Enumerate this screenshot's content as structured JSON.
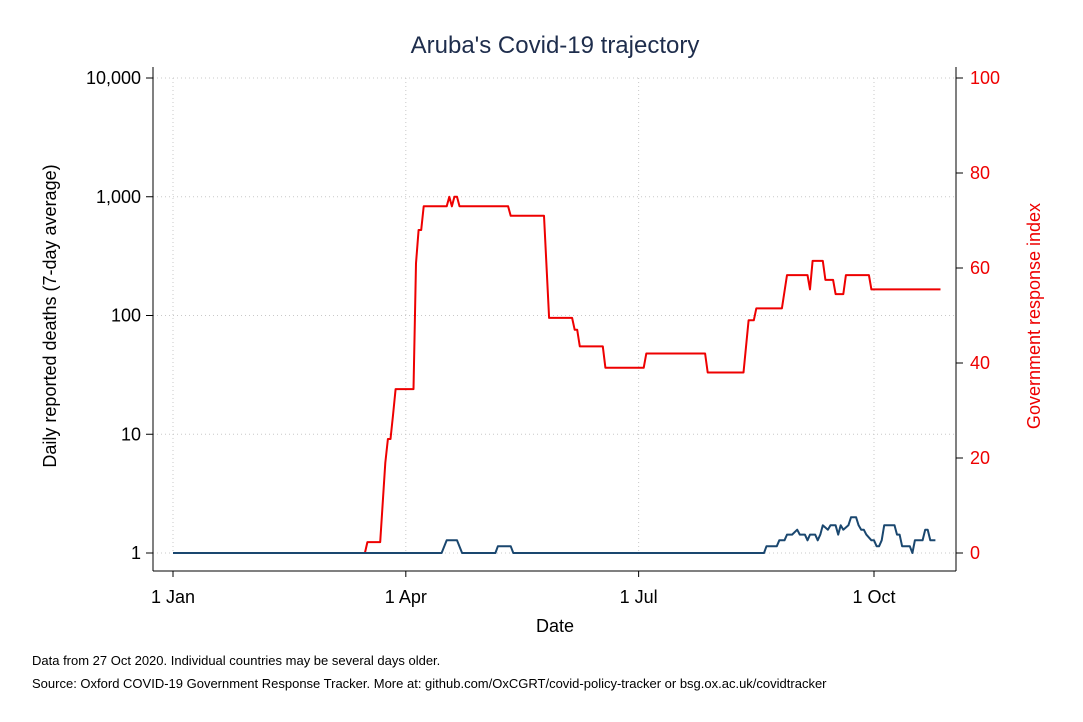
{
  "chart_data": {
    "type": "line",
    "title": "Aruba's Covid-19 trajectory",
    "xlabel": "Date",
    "ylabel_left": "Daily reported deaths (7-day average)",
    "ylabel_right": "Government response index",
    "x_ticks": [
      "1 Jan",
      "1 Apr",
      "1 Jul",
      "1 Oct"
    ],
    "y_left_scale": "log",
    "y_left_ticks": [
      "1",
      "10",
      "100",
      "1,000",
      "10,000"
    ],
    "y_left_lim": [
      1,
      10000
    ],
    "y_right_ticks": [
      "0",
      "20",
      "40",
      "60",
      "80",
      "100"
    ],
    "y_right_lim": [
      0,
      100
    ],
    "grid": true,
    "series": [
      {
        "axis": "right",
        "color": "#ee0000",
        "points": [
          [
            "2020-01-01",
            0
          ],
          [
            "2020-03-16",
            0
          ],
          [
            "2020-03-17",
            2.3
          ],
          [
            "2020-03-22",
            2.3
          ],
          [
            "2020-03-24",
            19
          ],
          [
            "2020-03-25",
            24
          ],
          [
            "2020-03-26",
            24
          ],
          [
            "2020-03-27",
            29
          ],
          [
            "2020-03-28",
            34.5
          ],
          [
            "2020-04-04",
            34.5
          ],
          [
            "2020-04-05",
            61
          ],
          [
            "2020-04-06",
            68
          ],
          [
            "2020-04-07",
            68
          ],
          [
            "2020-04-08",
            73
          ],
          [
            "2020-04-17",
            73
          ],
          [
            "2020-04-18",
            75
          ],
          [
            "2020-04-19",
            73
          ],
          [
            "2020-04-20",
            75
          ],
          [
            "2020-04-21",
            75
          ],
          [
            "2020-04-22",
            73
          ],
          [
            "2020-05-11",
            73
          ],
          [
            "2020-05-12",
            71
          ],
          [
            "2020-05-25",
            71
          ],
          [
            "2020-05-27",
            49.5
          ],
          [
            "2020-06-05",
            49.5
          ],
          [
            "2020-06-06",
            47
          ],
          [
            "2020-06-07",
            47
          ],
          [
            "2020-06-08",
            43.5
          ],
          [
            "2020-06-17",
            43.5
          ],
          [
            "2020-06-18",
            39
          ],
          [
            "2020-07-03",
            39
          ],
          [
            "2020-07-04",
            42
          ],
          [
            "2020-07-27",
            42
          ],
          [
            "2020-07-28",
            38
          ],
          [
            "2020-08-11",
            38
          ],
          [
            "2020-08-13",
            49
          ],
          [
            "2020-08-15",
            49
          ],
          [
            "2020-08-16",
            51.5
          ],
          [
            "2020-08-26",
            51.5
          ],
          [
            "2020-08-28",
            58.5
          ],
          [
            "2020-09-05",
            58.5
          ],
          [
            "2020-09-06",
            55.5
          ],
          [
            "2020-09-07",
            61.5
          ],
          [
            "2020-09-11",
            61.5
          ],
          [
            "2020-09-12",
            57.5
          ],
          [
            "2020-09-15",
            57.5
          ],
          [
            "2020-09-16",
            54.5
          ],
          [
            "2020-09-19",
            54.5
          ],
          [
            "2020-09-20",
            58.5
          ],
          [
            "2020-09-29",
            58.5
          ],
          [
            "2020-09-30",
            55.5
          ],
          [
            "2020-10-27",
            55.5
          ]
        ]
      },
      {
        "axis": "left",
        "color": "#1a476f",
        "points": [
          [
            "2020-01-01",
            1
          ],
          [
            "2020-04-15",
            1
          ],
          [
            "2020-04-17",
            1.28
          ],
          [
            "2020-04-21",
            1.28
          ],
          [
            "2020-04-23",
            1
          ],
          [
            "2020-05-06",
            1
          ],
          [
            "2020-05-07",
            1.14
          ],
          [
            "2020-05-12",
            1.14
          ],
          [
            "2020-05-13",
            1
          ],
          [
            "2020-08-19",
            1
          ],
          [
            "2020-08-20",
            1.14
          ],
          [
            "2020-08-24",
            1.14
          ],
          [
            "2020-08-25",
            1.28
          ],
          [
            "2020-08-27",
            1.28
          ],
          [
            "2020-08-28",
            1.43
          ],
          [
            "2020-08-30",
            1.43
          ],
          [
            "2020-09-01",
            1.57
          ],
          [
            "2020-09-02",
            1.43
          ],
          [
            "2020-09-04",
            1.43
          ],
          [
            "2020-09-05",
            1.28
          ],
          [
            "2020-09-06",
            1.43
          ],
          [
            "2020-09-08",
            1.43
          ],
          [
            "2020-09-09",
            1.28
          ],
          [
            "2020-09-10",
            1.43
          ],
          [
            "2020-09-11",
            1.71
          ],
          [
            "2020-09-13",
            1.57
          ],
          [
            "2020-09-14",
            1.71
          ],
          [
            "2020-09-16",
            1.71
          ],
          [
            "2020-09-17",
            1.43
          ],
          [
            "2020-09-18",
            1.71
          ],
          [
            "2020-09-19",
            1.57
          ],
          [
            "2020-09-21",
            1.71
          ],
          [
            "2020-09-22",
            2
          ],
          [
            "2020-09-24",
            2
          ],
          [
            "2020-09-25",
            1.71
          ],
          [
            "2020-09-26",
            1.57
          ],
          [
            "2020-09-27",
            1.57
          ],
          [
            "2020-09-28",
            1.43
          ],
          [
            "2020-09-30",
            1.28
          ],
          [
            "2020-10-01",
            1.28
          ],
          [
            "2020-10-02",
            1.14
          ],
          [
            "2020-10-03",
            1.14
          ],
          [
            "2020-10-04",
            1.28
          ],
          [
            "2020-10-05",
            1.71
          ],
          [
            "2020-10-09",
            1.71
          ],
          [
            "2020-10-10",
            1.43
          ],
          [
            "2020-10-11",
            1.43
          ],
          [
            "2020-10-12",
            1.14
          ],
          [
            "2020-10-15",
            1.14
          ],
          [
            "2020-10-16",
            1
          ],
          [
            "2020-10-17",
            1.28
          ],
          [
            "2020-10-20",
            1.28
          ],
          [
            "2020-10-21",
            1.57
          ],
          [
            "2020-10-22",
            1.57
          ],
          [
            "2020-10-23",
            1.28
          ],
          [
            "2020-10-25",
            1.28
          ]
        ]
      }
    ]
  },
  "footnotes": {
    "note1": "Data from 27 Oct 2020. Individual countries may be several days older.",
    "note2": "Source: Oxford COVID-19 Government Response Tracker. More at: github.com/OxCGRT/covid-policy-tracker or bsg.ox.ac.uk/covidtracker"
  }
}
